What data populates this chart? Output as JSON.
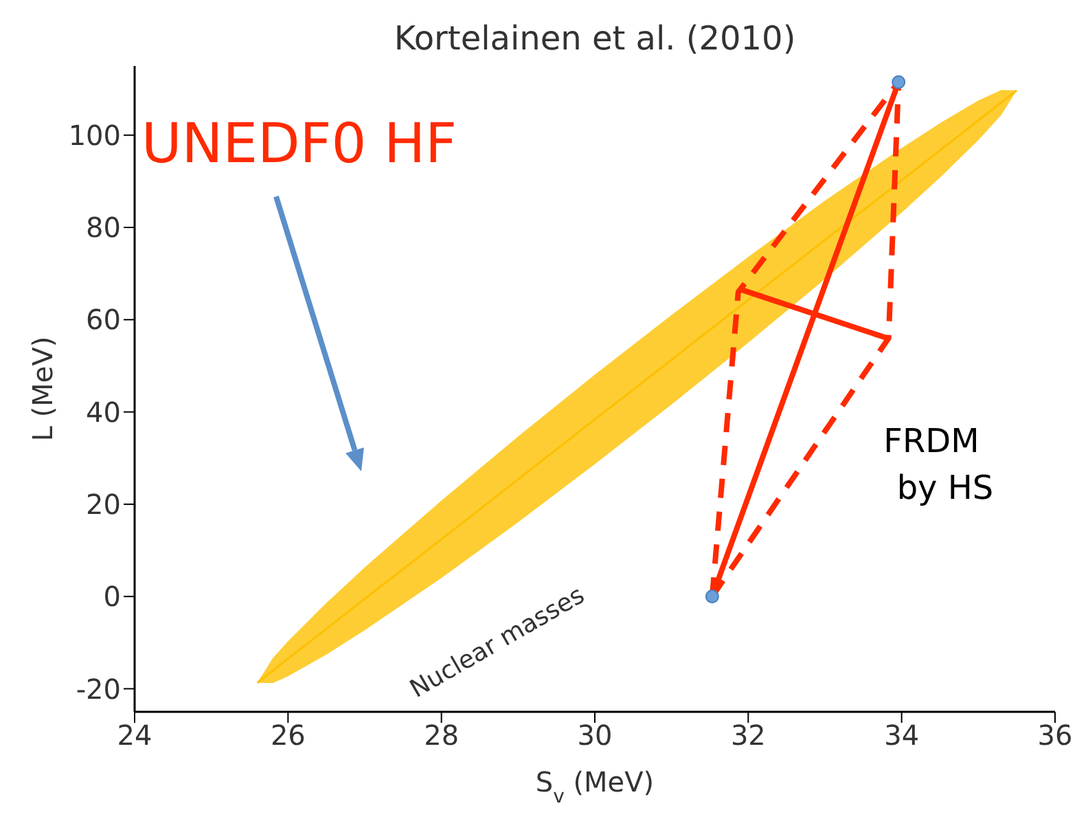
{
  "chart_data": {
    "type": "line",
    "title": "Kortelainen et al. (2010)",
    "xlabel": "S$_{v}$ (MeV)",
    "ylabel": "L (MeV)",
    "xlim": [
      24,
      36
    ],
    "ylim": [
      -25,
      115
    ],
    "xticks": [
      24,
      26,
      28,
      30,
      32,
      34,
      36
    ],
    "yticks": [
      -20,
      0,
      20,
      40,
      60,
      80,
      100
    ],
    "grid": false,
    "legend": false,
    "series": [
      {
        "type": "line",
        "color": "#fcc000",
        "x": [
          25.6,
          25.8,
          26,
          26.5,
          27,
          28,
          29,
          30,
          31,
          32,
          33,
          34,
          34.5,
          35,
          35.3,
          35.5
        ],
        "values": [
          -18.7,
          -16.1,
          -13.5,
          -7,
          -0.5,
          12.4,
          25.4,
          38.4,
          51.3,
          64.3,
          77.3,
          90.2,
          96.7,
          103.2,
          107.1,
          109.7
        ],
        "lower": [
          -18.7,
          -18.8,
          -17.3,
          -12.6,
          -7.3,
          4,
          16.1,
          28.7,
          41.6,
          55,
          68.8,
          83.2,
          90.8,
          98.9,
          104.4,
          109.7
        ],
        "upper": [
          -18.7,
          -13.4,
          -9.7,
          -1.4,
          6.3,
          20.8,
          34.7,
          48.1,
          61,
          73.6,
          85.8,
          97.2,
          102.6,
          107.5,
          109.8,
          109.7
        ]
      },
      {
        "type": "line",
        "color": "#ff2a00",
        "line_style": "solid",
        "marker": "none",
        "x": [
          31.53,
          33.96
        ],
        "values": [
          0,
          111.5
        ]
      },
      {
        "type": "line",
        "color": "#ff2a00",
        "line_style": "solid",
        "marker": "none",
        "x": [
          31.91,
          33.83
        ],
        "values": [
          66.5,
          55.9
        ]
      },
      {
        "type": "line",
        "color": "#ff2a00",
        "line_style": "dashed",
        "marker": "none",
        "x": [
          31.53,
          31.87,
          33.96
        ],
        "values": [
          0,
          66,
          111.5
        ]
      },
      {
        "type": "line",
        "color": "#ff2a00",
        "line_style": "dashed",
        "marker": "none",
        "x": [
          31.53,
          33.83,
          33.96
        ],
        "values": [
          0,
          56,
          111.5
        ]
      },
      {
        "type": "scatter",
        "color": "#6a9fd8",
        "marker": "circle",
        "x": [
          31.53,
          33.96
        ],
        "values": [
          0,
          111.5
        ]
      }
    ],
    "annotations": [
      "UNEDF0 HF",
      "Nuclear masses",
      "FRDM by HS"
    ]
  }
}
